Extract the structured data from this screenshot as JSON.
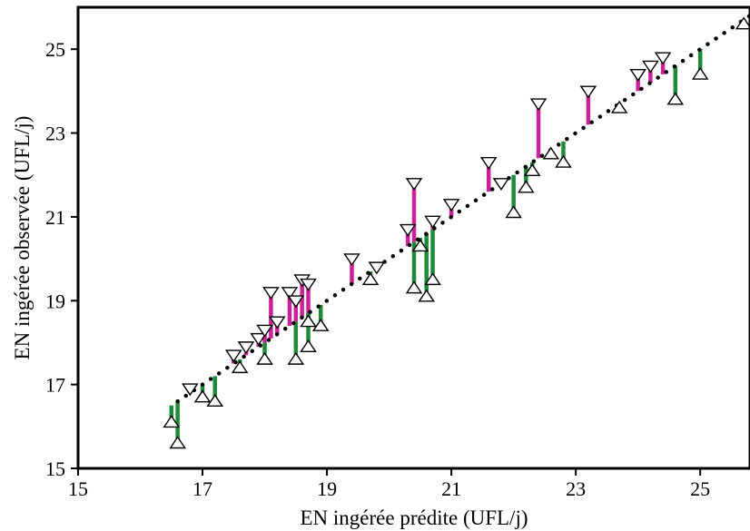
{
  "chart_data": {
    "type": "scatter",
    "xlabel": "EN ingérée prédite (UFL/j)",
    "ylabel": "EN ingérée observée (UFL/j)",
    "xlim": [
      15,
      25.8
    ],
    "ylim": [
      15,
      26
    ],
    "xticks": [
      15,
      17,
      19,
      21,
      23,
      25
    ],
    "yticks": [
      15,
      17,
      19,
      21,
      23,
      25
    ],
    "grid": false,
    "legend": "none",
    "colors": {
      "over": "#cc2299",
      "under": "#1e8a3a",
      "diagonal": "#000000"
    },
    "over_predicted_markers": [
      [
        16.8,
        16.9
      ],
      [
        17.5,
        17.7
      ],
      [
        17.7,
        17.9
      ],
      [
        17.9,
        18.1
      ],
      [
        18.0,
        18.3
      ],
      [
        18.1,
        19.2
      ],
      [
        18.2,
        18.5
      ],
      [
        18.4,
        19.2
      ],
      [
        18.5,
        19.0
      ],
      [
        18.6,
        19.5
      ],
      [
        18.7,
        19.4
      ],
      [
        19.4,
        20.0
      ],
      [
        19.8,
        19.8
      ],
      [
        20.3,
        20.7
      ],
      [
        20.4,
        21.8
      ],
      [
        20.7,
        20.9
      ],
      [
        21.0,
        21.3
      ],
      [
        21.6,
        22.3
      ],
      [
        21.8,
        21.8
      ],
      [
        22.4,
        23.7
      ],
      [
        23.2,
        24.0
      ],
      [
        24.0,
        24.4
      ],
      [
        24.2,
        24.6
      ],
      [
        24.4,
        24.8
      ]
    ],
    "under_predicted_markers": [
      [
        16.5,
        16.1
      ],
      [
        16.6,
        15.6
      ],
      [
        17.0,
        16.7
      ],
      [
        17.2,
        16.6
      ],
      [
        17.6,
        17.4
      ],
      [
        18.0,
        17.6
      ],
      [
        18.5,
        17.6
      ],
      [
        18.7,
        17.9
      ],
      [
        18.7,
        18.5
      ],
      [
        18.9,
        18.4
      ],
      [
        19.7,
        19.5
      ],
      [
        20.4,
        19.3
      ],
      [
        20.5,
        20.3
      ],
      [
        20.6,
        19.1
      ],
      [
        20.7,
        19.5
      ],
      [
        22.0,
        21.1
      ],
      [
        22.2,
        21.7
      ],
      [
        22.3,
        22.1
      ],
      [
        22.6,
        22.5
      ],
      [
        22.8,
        22.3
      ],
      [
        23.7,
        23.6
      ],
      [
        24.6,
        23.8
      ],
      [
        25.0,
        24.4
      ],
      [
        25.7,
        25.6
      ]
    ]
  }
}
